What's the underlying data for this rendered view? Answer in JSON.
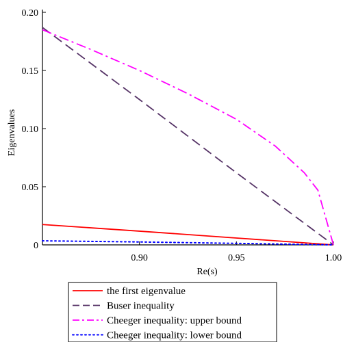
{
  "chart_data": {
    "type": "line",
    "xlabel": "Re(s)",
    "ylabel": "Eigenvalues",
    "xlim": [
      0.85,
      1.0
    ],
    "ylim": [
      0,
      0.2
    ],
    "x_ticks": [
      0.9,
      0.95,
      1.0
    ],
    "x_tick_labels": [
      "0.90",
      "0.95",
      "1.00"
    ],
    "y_ticks": [
      0,
      0.05,
      0.1,
      0.15,
      0.2
    ],
    "y_tick_labels": [
      "0",
      "0.05",
      "0.10",
      "0.15",
      "0.20"
    ],
    "grid": false,
    "legend_position": "bottom",
    "series": [
      {
        "name": "the first eigenvalue",
        "color": "#ff0000",
        "style": "solid",
        "x": [
          0.85,
          0.9,
          0.95,
          1.0
        ],
        "y": [
          0.0175,
          0.0118,
          0.0059,
          0.0
        ]
      },
      {
        "name": "Buser inequality",
        "color": "#553366",
        "style": "dashed",
        "x": [
          0.85,
          0.9,
          0.95,
          1.0
        ],
        "y": [
          0.187,
          0.125,
          0.062,
          0.0
        ]
      },
      {
        "name": "Cheeger inequality: upper bound",
        "color": "#ff00ff",
        "style": "dashdot",
        "x": [
          0.85,
          0.875,
          0.9,
          0.925,
          0.95,
          0.97,
          0.985,
          0.992,
          1.0
        ],
        "y": [
          0.185,
          0.168,
          0.15,
          0.13,
          0.108,
          0.085,
          0.062,
          0.047,
          0.0
        ]
      },
      {
        "name": "Cheeger inequality: lower bound",
        "color": "#0000ff",
        "style": "dotted",
        "x": [
          0.85,
          0.9,
          0.95,
          1.0
        ],
        "y": [
          0.0035,
          0.0025,
          0.0013,
          0.0
        ]
      }
    ]
  }
}
